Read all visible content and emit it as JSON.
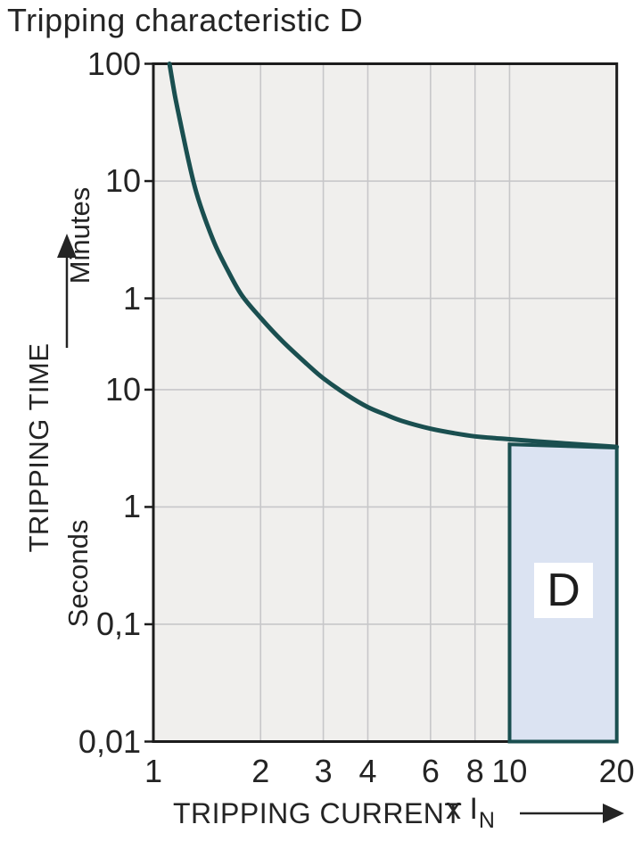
{
  "title": "Tripping characteristic D",
  "chart_data": {
    "type": "line",
    "title": "Tripping characteristic D",
    "x_axis": {
      "title": "TRIPPING CURRENT",
      "unit_prefix": "x I",
      "unit_subscript": "N",
      "scale": "log",
      "range": [
        1,
        20
      ],
      "ticks": [
        {
          "value": 1,
          "label": "1"
        },
        {
          "value": 2,
          "label": "2"
        },
        {
          "value": 3,
          "label": "3"
        },
        {
          "value": 4,
          "label": "4"
        },
        {
          "value": 6,
          "label": "6"
        },
        {
          "value": 8,
          "label": "8"
        },
        {
          "value": 10,
          "label": "10"
        },
        {
          "value": 20,
          "label": "20"
        }
      ]
    },
    "y_axis": {
      "title": "TRIPPING TIME",
      "scale": "log",
      "unit": "seconds",
      "range_seconds": [
        0.01,
        6000
      ],
      "minutes_label": "Minutes",
      "seconds_label": "Seconds",
      "ticks": [
        {
          "seconds": 6000,
          "label": "100",
          "group": "Minutes"
        },
        {
          "seconds": 600,
          "label": "10",
          "group": "Minutes"
        },
        {
          "seconds": 60,
          "label": "1",
          "group": "Minutes"
        },
        {
          "seconds": 10,
          "label": "10",
          "group": "Seconds"
        },
        {
          "seconds": 1,
          "label": "1",
          "group": "Seconds"
        },
        {
          "seconds": 0.1,
          "label": "0,1",
          "group": "Seconds"
        },
        {
          "seconds": 0.01,
          "label": "0,01",
          "group": "Seconds"
        }
      ]
    },
    "series": [
      {
        "name": "D tripping curve",
        "color": "#1a4f50",
        "points_I_seconds": [
          [
            1.11,
            6000
          ],
          [
            1.15,
            3200
          ],
          [
            1.2,
            1700
          ],
          [
            1.26,
            850
          ],
          [
            1.32,
            480
          ],
          [
            1.4,
            280
          ],
          [
            1.5,
            165
          ],
          [
            1.62,
            103
          ],
          [
            1.77,
            64
          ],
          [
            2.0,
            41
          ],
          [
            2.3,
            26
          ],
          [
            2.7,
            16.5
          ],
          [
            3.0,
            12.5
          ],
          [
            3.5,
            9.0
          ],
          [
            4.0,
            7.1
          ],
          [
            4.5,
            6.1
          ],
          [
            5.0,
            5.4
          ],
          [
            6.0,
            4.65
          ],
          [
            7.0,
            4.25
          ],
          [
            8.0,
            4.0
          ],
          [
            9.0,
            3.87
          ],
          [
            10,
            3.78
          ],
          [
            12,
            3.62
          ],
          [
            14,
            3.5
          ],
          [
            16,
            3.4
          ],
          [
            18,
            3.32
          ],
          [
            20,
            3.25
          ]
        ]
      }
    ],
    "d_region": {
      "label": "D",
      "x_from": 10,
      "x_to": 20,
      "top_seconds_at_x_from": 3.42,
      "top_seconds_at_x_to": 3.2,
      "bottom_seconds": 0.01,
      "fill": "#dbe3f2",
      "border": "#1a4f50"
    },
    "grid": true,
    "legend": "none",
    "colors": {
      "plot_background": "#f0efed",
      "gridline": "#c7c7c9",
      "plot_border": "#1c1c1c",
      "text": "#242424",
      "page_background": "#ffffff"
    }
  }
}
